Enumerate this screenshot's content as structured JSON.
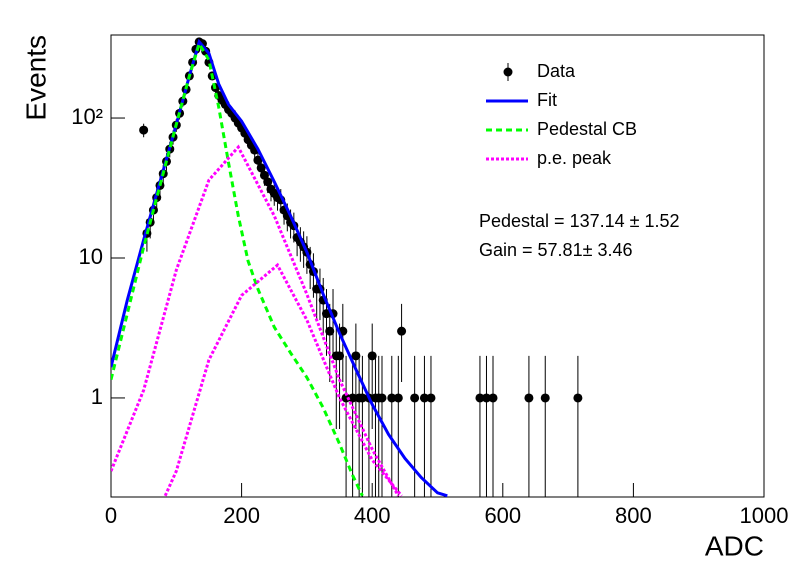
{
  "chart_data": {
    "type": "hist-fit",
    "xlabel": "ADC",
    "ylabel": "Events",
    "log_y": true,
    "legend": "top-right",
    "xlim": [
      0,
      1000
    ],
    "xticks": [
      0,
      200,
      400,
      600,
      800,
      1000
    ],
    "ylim": [
      0.196,
      392
    ],
    "yticks": [
      1,
      10,
      {
        "value": 100,
        "label": "10²"
      }
    ],
    "annotations": [
      "Pedestal = 137.14 ± 1.52",
      "Gain = 57.81± 3.46"
    ],
    "series": [
      {
        "name": "Data",
        "kind": "points",
        "color": "#000000",
        "x": [
          50,
          55,
          60,
          65,
          70,
          75,
          80,
          85,
          90,
          95,
          100,
          105,
          110,
          115,
          120,
          125,
          130,
          135,
          140,
          145,
          150,
          155,
          160,
          165,
          170,
          175,
          180,
          185,
          190,
          195,
          200,
          205,
          210,
          215,
          220,
          225,
          230,
          235,
          240,
          245,
          250,
          255,
          260,
          265,
          270,
          275,
          280,
          285,
          290,
          295,
          300,
          305,
          310,
          315,
          320,
          325,
          330,
          335,
          340,
          345,
          350,
          355,
          360,
          370,
          375,
          380,
          385,
          395,
          400,
          405,
          410,
          415,
          430,
          440,
          445,
          465,
          480,
          490,
          565,
          575,
          585,
          640,
          665,
          715
        ],
        "values": [
          82,
          15,
          18,
          22,
          27,
          33,
          40,
          49,
          60,
          73,
          89,
          108,
          132,
          160,
          200,
          250,
          310,
          350,
          340,
          300,
          250,
          200,
          165,
          145,
          134,
          125,
          115,
          108,
          100,
          92,
          85,
          78,
          70,
          64,
          59,
          50,
          44,
          39,
          35,
          31,
          29,
          27,
          26,
          22,
          20,
          18,
          17,
          14,
          13,
          12,
          11,
          9,
          8,
          6,
          6,
          5,
          4,
          3,
          4,
          2,
          2,
          3,
          1,
          1,
          2,
          1,
          1,
          1,
          2,
          1,
          1,
          1,
          1,
          1,
          3,
          1,
          1,
          1,
          1,
          1,
          1,
          1,
          1,
          1
        ],
        "errors": [
          9.1,
          3.9,
          4.2,
          4.7,
          5.2,
          5.7,
          6.3,
          7,
          7.7,
          8.5,
          9.4,
          10.4,
          11.5,
          12.6,
          14.1,
          15.8,
          17.6,
          18.7,
          18.4,
          17.3,
          15.8,
          14.1,
          12.8,
          12,
          11.6,
          11.2,
          10.7,
          10.4,
          10,
          9.6,
          9.2,
          8.8,
          8.4,
          8,
          7.7,
          7.1,
          6.6,
          6.2,
          5.9,
          5.6,
          5.4,
          5.2,
          5.1,
          4.7,
          4.5,
          4.2,
          4.1,
          3.7,
          3.6,
          3.5,
          3.3,
          3,
          2.8,
          2.4,
          2.4,
          2.2,
          2,
          1.7,
          2,
          1.4,
          1.4,
          1.7,
          1,
          1,
          1.4,
          1,
          1,
          1,
          1.4,
          1,
          1,
          1,
          1,
          1,
          1.7,
          1,
          1,
          1,
          1,
          1,
          1,
          1,
          1,
          1
        ]
      },
      {
        "name": "Fit",
        "kind": "solid",
        "color": "#0000ff",
        "x": [
          0,
          25,
          50,
          75,
          100,
          120,
          135,
          150,
          165,
          180,
          200,
          225,
          250,
          275,
          300,
          325,
          350,
          375,
          400,
          425,
          450,
          475,
          500,
          515
        ],
        "values": [
          1.66,
          5,
          13.5,
          35,
          90,
          200,
          350,
          290,
          175,
          125,
          95,
          60,
          35,
          20,
          11,
          5.5,
          2.9,
          1.6,
          0.9,
          0.55,
          0.37,
          0.27,
          0.21,
          0.2
        ]
      },
      {
        "name": "Pedestal CB",
        "kind": "dashed",
        "color": "#00ff00",
        "x": [
          0,
          25,
          50,
          75,
          100,
          120,
          135,
          150,
          165,
          180,
          195,
          210,
          225,
          250,
          275,
          300,
          325,
          350,
          370,
          385
        ],
        "values": [
          1.35,
          4,
          12,
          33,
          90,
          200,
          340,
          260,
          120,
          48,
          20,
          9.5,
          6,
          3.2,
          2.1,
          1.4,
          0.85,
          0.47,
          0.28,
          0.2
        ]
      },
      {
        "name": "p.e. peak",
        "kind": "dotted",
        "color": "#ff00ff",
        "x": [
          0,
          50,
          100,
          150,
          195,
          250,
          300,
          350,
          400,
          440
        ],
        "values": [
          0.3,
          1.14,
          8.2,
          36,
          62,
          20,
          5.5,
          1.35,
          0.43,
          0.2
        ]
      },
      {
        "kind": "dotted",
        "color": "#ff00ff",
        "x": [
          83,
          100,
          150,
          200,
          255,
          300,
          350,
          400,
          445
        ],
        "values": [
          0.2,
          0.3,
          1.87,
          5.4,
          8.9,
          3.6,
          1,
          0.36,
          0.2
        ]
      }
    ]
  }
}
